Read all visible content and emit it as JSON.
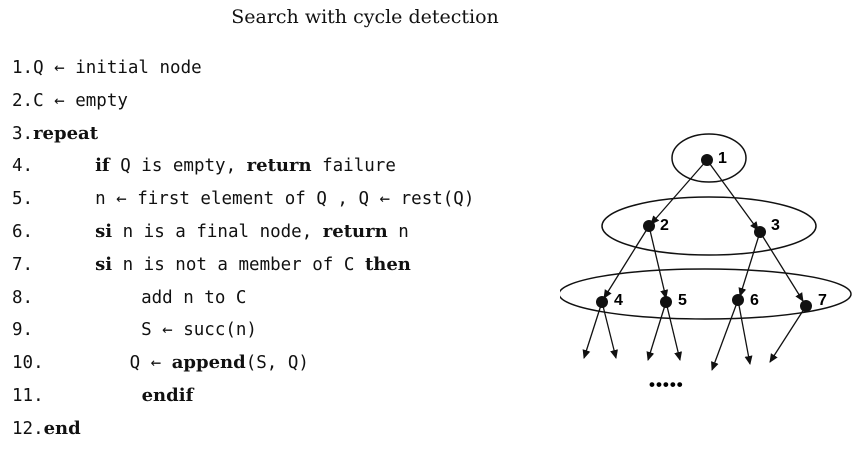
{
  "title": "Search with cycle detection",
  "code_lines": [
    {
      "num": "1.",
      "indent": 0,
      "segments": [
        {
          "t": "Q ← initial node",
          "kw": false
        }
      ]
    },
    {
      "num": "2.",
      "indent": 0,
      "segments": [
        {
          "t": "C ← empty",
          "kw": false
        }
      ]
    },
    {
      "num": "3.",
      "indent": 0,
      "segments": [
        {
          "t": "repeat",
          "kw": true
        }
      ]
    },
    {
      "num": "4.",
      "indent": 62,
      "segments": [
        {
          "t": "if",
          "kw": true
        },
        {
          "t": " Q is empty, ",
          "kw": false
        },
        {
          "t": "return",
          "kw": true
        },
        {
          "t": " failure",
          "kw": false
        }
      ]
    },
    {
      "num": "5.",
      "indent": 62,
      "segments": [
        {
          "t": "n ← first element of Q , Q ← rest(Q)",
          "kw": false
        }
      ]
    },
    {
      "num": "6.",
      "indent": 62,
      "segments": [
        {
          "t": "si",
          "kw": true
        },
        {
          "t": " n is a final node, ",
          "kw": false
        },
        {
          "t": "return",
          "kw": true
        },
        {
          "t": " n",
          "kw": false
        }
      ]
    },
    {
      "num": "7.",
      "indent": 62,
      "segments": [
        {
          "t": "si",
          "kw": true
        },
        {
          "t": " n is not a member of C ",
          "kw": false
        },
        {
          "t": "then",
          "kw": true
        }
      ]
    },
    {
      "num": "8.",
      "indent": 108,
      "segments": [
        {
          "t": "add n to C",
          "kw": false
        }
      ]
    },
    {
      "num": "9.",
      "indent": 108,
      "segments": [
        {
          "t": "S ← succ(n)",
          "kw": false
        }
      ]
    },
    {
      "num": "10.",
      "indent": 86,
      "segments": [
        {
          "t": "Q ← ",
          "kw": false
        },
        {
          "t": "append",
          "kw": true
        },
        {
          "t": "(S, Q)",
          "kw": false
        }
      ]
    },
    {
      "num": "11.",
      "indent": 98,
      "segments": [
        {
          "t": "endif",
          "kw": true
        }
      ]
    },
    {
      "num": "12.",
      "indent": 0,
      "segments": [
        {
          "t": "end",
          "kw": true
        }
      ]
    }
  ],
  "tree": {
    "node_labels": [
      "1",
      "2",
      "3",
      "4",
      "5",
      "6",
      "7"
    ],
    "ellipsis": "•••••"
  }
}
